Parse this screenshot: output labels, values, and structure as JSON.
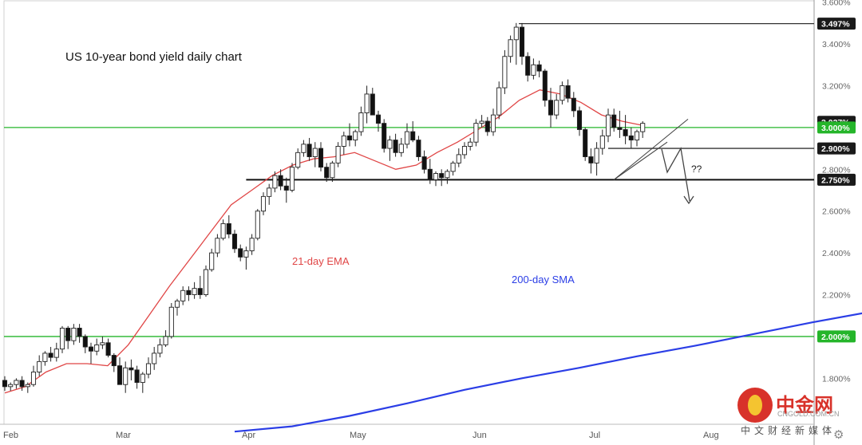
{
  "chart_data": {
    "type": "candlestick",
    "title": "US 10-year bond yield daily chart",
    "y_axis": {
      "ylim": [
        1.58,
        3.61
      ],
      "ticks": [
        "3.600%",
        "3.400%",
        "3.200%",
        "2.800%",
        "2.600%",
        "2.400%",
        "2.200%",
        "1.800%"
      ],
      "labels_highlighted": [
        {
          "text": "3.497%",
          "value": 3.497,
          "style": "dark"
        },
        {
          "text": "3.027%",
          "value": 3.027,
          "style": "dark"
        },
        {
          "text": "3.000%",
          "value": 3.0,
          "style": "green"
        },
        {
          "text": "2.900%",
          "value": 2.9,
          "style": "dark"
        },
        {
          "text": "2.750%",
          "value": 2.75,
          "style": "dark"
        },
        {
          "text": "2.000%",
          "value": 2.0,
          "style": "green"
        }
      ]
    },
    "x_axis": {
      "categories": [
        "Feb",
        "Mar",
        "Apr",
        "May",
        "Jun",
        "Jul",
        "Aug"
      ]
    },
    "horizontal_levels": [
      {
        "value": 3.497,
        "color": "#333333",
        "type": "resistance"
      },
      {
        "value": 3.0,
        "color": "#25b52a",
        "type": "support"
      },
      {
        "value": 2.9,
        "color": "#333333",
        "type": "level"
      },
      {
        "value": 2.75,
        "color": "#111111",
        "type": "support"
      },
      {
        "value": 2.0,
        "color": "#25b52a",
        "type": "support"
      }
    ],
    "series": [
      {
        "name": "21-day EMA",
        "color": "#e04646"
      },
      {
        "name": "200-day SMA",
        "color": "#2b3ee6"
      }
    ],
    "annotations": [
      {
        "text": "??"
      }
    ],
    "candles_ohlc": [
      [
        1.79,
        1.81,
        1.74,
        1.76
      ],
      [
        1.76,
        1.78,
        1.74,
        1.77
      ],
      [
        1.77,
        1.8,
        1.75,
        1.79
      ],
      [
        1.79,
        1.81,
        1.74,
        1.76
      ],
      [
        1.76,
        1.78,
        1.73,
        1.77
      ],
      [
        1.77,
        1.86,
        1.76,
        1.83
      ],
      [
        1.83,
        1.91,
        1.81,
        1.88
      ],
      [
        1.88,
        1.93,
        1.86,
        1.92
      ],
      [
        1.92,
        1.95,
        1.88,
        1.9
      ],
      [
        1.9,
        1.97,
        1.88,
        1.94
      ],
      [
        1.94,
        2.05,
        1.92,
        2.04
      ],
      [
        2.04,
        2.05,
        1.94,
        1.98
      ],
      [
        1.98,
        2.06,
        1.96,
        2.04
      ],
      [
        2.04,
        2.06,
        1.97,
        2.0
      ],
      [
        2.0,
        2.01,
        1.92,
        1.95
      ],
      [
        1.95,
        1.97,
        1.87,
        1.93
      ],
      [
        1.93,
        1.99,
        1.91,
        1.96
      ],
      [
        1.96,
        2.0,
        1.94,
        1.97
      ],
      [
        1.97,
        1.99,
        1.9,
        1.91
      ],
      [
        1.91,
        1.92,
        1.83,
        1.86
      ],
      [
        1.86,
        1.9,
        1.77,
        1.77
      ],
      [
        1.77,
        1.88,
        1.73,
        1.85
      ],
      [
        1.85,
        1.89,
        1.79,
        1.84
      ],
      [
        1.84,
        1.86,
        1.75,
        1.78
      ],
      [
        1.78,
        1.83,
        1.73,
        1.82
      ],
      [
        1.82,
        1.9,
        1.8,
        1.87
      ],
      [
        1.87,
        1.95,
        1.84,
        1.92
      ],
      [
        1.92,
        1.99,
        1.9,
        1.96
      ],
      [
        1.96,
        2.03,
        1.95,
        2.0
      ],
      [
        2.0,
        2.16,
        1.99,
        2.14
      ],
      [
        2.14,
        2.18,
        2.1,
        2.17
      ],
      [
        2.17,
        2.24,
        2.15,
        2.22
      ],
      [
        2.22,
        2.24,
        2.17,
        2.2
      ],
      [
        2.2,
        2.26,
        2.18,
        2.23
      ],
      [
        2.23,
        2.29,
        2.18,
        2.2
      ],
      [
        2.2,
        2.34,
        2.19,
        2.32
      ],
      [
        2.32,
        2.42,
        2.31,
        2.4
      ],
      [
        2.4,
        2.49,
        2.38,
        2.47
      ],
      [
        2.47,
        2.56,
        2.46,
        2.54
      ],
      [
        2.54,
        2.58,
        2.47,
        2.49
      ],
      [
        2.49,
        2.51,
        2.4,
        2.42
      ],
      [
        2.42,
        2.44,
        2.36,
        2.38
      ],
      [
        2.38,
        2.43,
        2.32,
        2.41
      ],
      [
        2.41,
        2.49,
        2.39,
        2.47
      ],
      [
        2.47,
        2.61,
        2.46,
        2.6
      ],
      [
        2.6,
        2.69,
        2.58,
        2.67
      ],
      [
        2.67,
        2.73,
        2.63,
        2.71
      ],
      [
        2.71,
        2.79,
        2.69,
        2.77
      ],
      [
        2.77,
        2.8,
        2.7,
        2.72
      ],
      [
        2.72,
        2.76,
        2.64,
        2.7
      ],
      [
        2.7,
        2.83,
        2.69,
        2.81
      ],
      [
        2.81,
        2.9,
        2.8,
        2.88
      ],
      [
        2.88,
        2.94,
        2.86,
        2.92
      ],
      [
        2.92,
        2.95,
        2.84,
        2.86
      ],
      [
        2.86,
        2.93,
        2.81,
        2.9
      ],
      [
        2.9,
        2.93,
        2.79,
        2.81
      ],
      [
        2.81,
        2.83,
        2.74,
        2.76
      ],
      [
        2.76,
        2.84,
        2.74,
        2.83
      ],
      [
        2.83,
        2.93,
        2.81,
        2.91
      ],
      [
        2.91,
        2.98,
        2.87,
        2.96
      ],
      [
        2.96,
        3.02,
        2.91,
        2.94
      ],
      [
        2.94,
        2.99,
        2.91,
        2.98
      ],
      [
        2.98,
        3.1,
        2.96,
        3.07
      ],
      [
        3.07,
        3.2,
        3.02,
        3.16
      ],
      [
        3.16,
        3.19,
        3.06,
        3.06
      ],
      [
        3.06,
        3.08,
        2.98,
        3.02
      ],
      [
        3.02,
        3.04,
        2.88,
        2.9
      ],
      [
        2.9,
        2.96,
        2.84,
        2.94
      ],
      [
        2.94,
        2.97,
        2.86,
        2.88
      ],
      [
        2.88,
        2.95,
        2.86,
        2.92
      ],
      [
        2.92,
        3.02,
        2.9,
        2.98
      ],
      [
        2.98,
        3.03,
        2.93,
        2.94
      ],
      [
        2.94,
        2.96,
        2.84,
        2.86
      ],
      [
        2.86,
        2.89,
        2.78,
        2.8
      ],
      [
        2.8,
        2.85,
        2.73,
        2.75
      ],
      [
        2.75,
        2.79,
        2.72,
        2.78
      ],
      [
        2.78,
        2.8,
        2.72,
        2.76
      ],
      [
        2.76,
        2.8,
        2.73,
        2.79
      ],
      [
        2.79,
        2.84,
        2.77,
        2.83
      ],
      [
        2.83,
        2.9,
        2.81,
        2.87
      ],
      [
        2.87,
        2.93,
        2.85,
        2.91
      ],
      [
        2.91,
        2.95,
        2.89,
        2.93
      ],
      [
        2.93,
        3.04,
        2.91,
        3.02
      ],
      [
        3.02,
        3.06,
        3.0,
        3.03
      ],
      [
        3.03,
        3.05,
        2.96,
        2.98
      ],
      [
        2.98,
        3.09,
        2.96,
        3.06
      ],
      [
        3.06,
        3.22,
        3.04,
        3.19
      ],
      [
        3.19,
        3.37,
        3.16,
        3.34
      ],
      [
        3.34,
        3.44,
        3.31,
        3.42
      ],
      [
        3.42,
        3.5,
        3.3,
        3.48
      ],
      [
        3.48,
        3.5,
        3.3,
        3.34
      ],
      [
        3.34,
        3.36,
        3.22,
        3.25
      ],
      [
        3.25,
        3.33,
        3.23,
        3.3
      ],
      [
        3.3,
        3.32,
        3.24,
        3.27
      ],
      [
        3.27,
        3.28,
        3.1,
        3.13
      ],
      [
        3.13,
        3.19,
        3.0,
        3.06
      ],
      [
        3.06,
        3.16,
        3.04,
        3.13
      ],
      [
        3.13,
        3.22,
        3.11,
        3.2
      ],
      [
        3.2,
        3.23,
        3.12,
        3.14
      ],
      [
        3.14,
        3.17,
        3.05,
        3.08
      ],
      [
        3.08,
        3.1,
        2.96,
        2.99
      ],
      [
        2.99,
        3.0,
        2.84,
        2.86
      ],
      [
        2.86,
        2.9,
        2.78,
        2.83
      ],
      [
        2.83,
        2.93,
        2.77,
        2.9
      ],
      [
        2.9,
        2.99,
        2.87,
        2.96
      ],
      [
        2.96,
        3.09,
        2.93,
        3.06
      ],
      [
        3.06,
        3.09,
        2.98,
        3.0
      ],
      [
        3.0,
        3.08,
        2.95,
        2.99
      ],
      [
        2.99,
        3.06,
        2.92,
        2.96
      ],
      [
        2.96,
        3.0,
        2.9,
        2.94
      ],
      [
        2.94,
        2.99,
        2.91,
        2.98
      ],
      [
        2.98,
        3.03,
        2.95,
        3.02
      ]
    ],
    "ema21": [
      [
        0,
        1.73
      ],
      [
        5,
        1.76
      ],
      [
        10,
        1.83
      ],
      [
        15,
        1.87
      ],
      [
        20,
        1.87
      ],
      [
        25,
        1.86
      ],
      [
        30,
        1.96
      ],
      [
        35,
        2.1
      ],
      [
        40,
        2.24
      ],
      [
        45,
        2.37
      ],
      [
        50,
        2.5
      ],
      [
        55,
        2.63
      ],
      [
        60,
        2.7
      ],
      [
        65,
        2.77
      ],
      [
        70,
        2.82
      ],
      [
        75,
        2.85
      ],
      [
        80,
        2.86
      ],
      [
        85,
        2.88
      ],
      [
        90,
        2.84
      ],
      [
        95,
        2.8
      ],
      [
        100,
        2.82
      ],
      [
        105,
        2.88
      ],
      [
        110,
        2.93
      ],
      [
        115,
        2.99
      ],
      [
        120,
        3.05
      ],
      [
        125,
        3.13
      ],
      [
        130,
        3.18
      ],
      [
        135,
        3.16
      ],
      [
        140,
        3.12
      ],
      [
        145,
        3.06
      ],
      [
        150,
        3.03
      ],
      [
        155,
        3.01
      ]
    ],
    "sma200": [
      [
        0,
        1.545
      ],
      [
        10,
        1.57
      ],
      [
        20,
        1.62
      ],
      [
        30,
        1.68
      ],
      [
        40,
        1.745
      ],
      [
        50,
        1.8
      ],
      [
        60,
        1.85
      ],
      [
        70,
        1.905
      ],
      [
        80,
        1.955
      ],
      [
        90,
        2.01
      ],
      [
        100,
        2.065
      ],
      [
        110,
        2.115
      ],
      [
        120,
        2.16
      ],
      [
        127,
        2.21
      ]
    ]
  },
  "labels": {
    "ema_label": "21-day EMA",
    "sma_label": "200-day SMA",
    "question": "??"
  },
  "watermark": {
    "cn": "中金网",
    "en": "CNGOLD.COM.CN",
    "sub": "中文财经新媒体"
  },
  "icons": {
    "settings": "gear-icon"
  }
}
